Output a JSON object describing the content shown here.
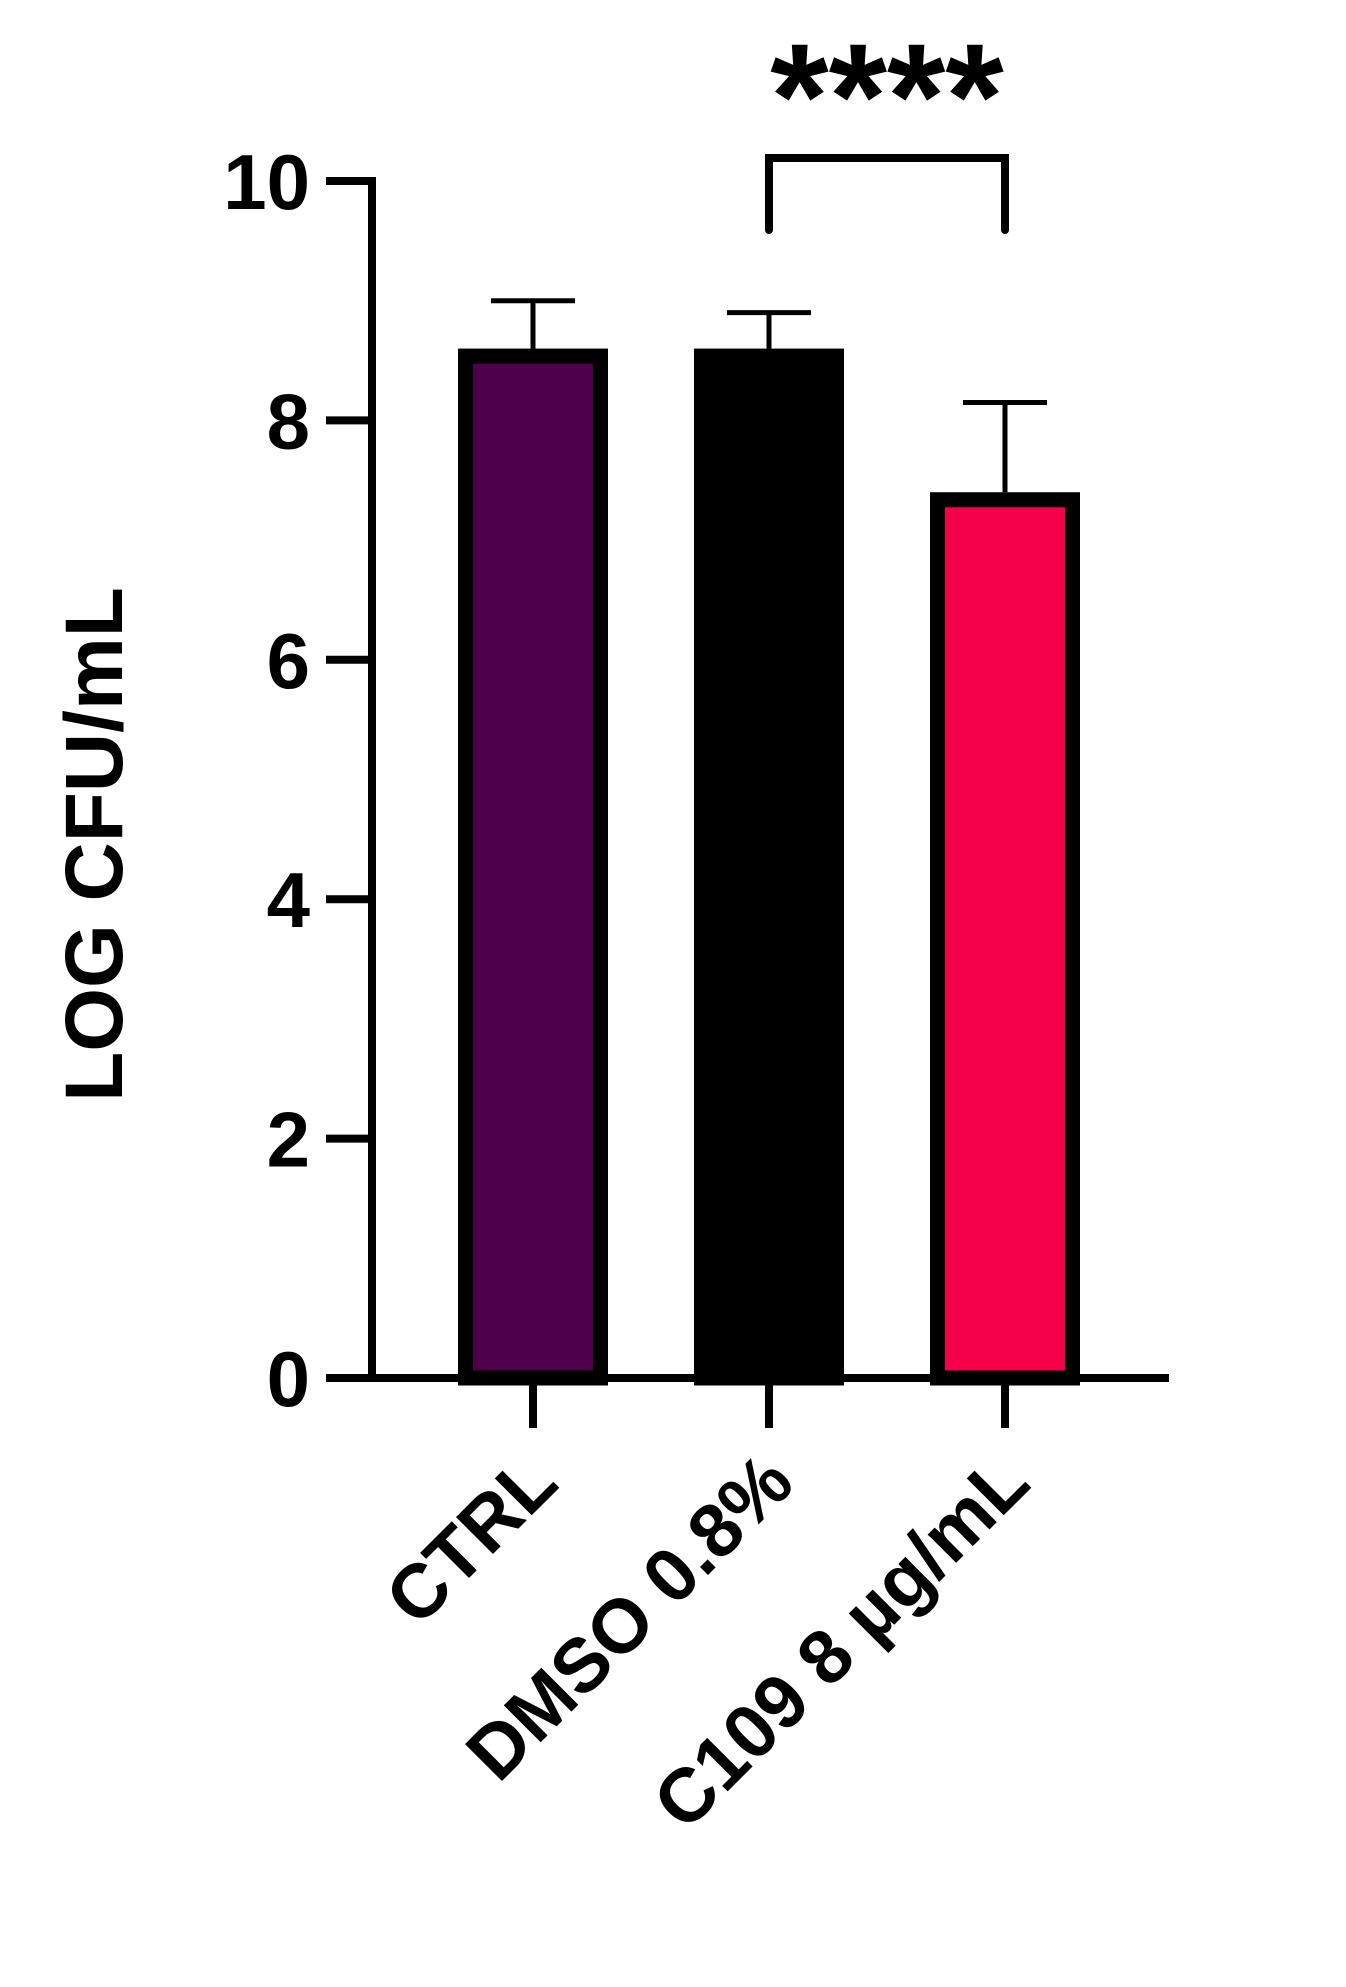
{
  "chart_data": {
    "type": "bar",
    "title": "",
    "xlabel": "",
    "ylabel": "LOG CFU/mL",
    "ylim": [
      0,
      10
    ],
    "yticks": [
      0,
      2,
      4,
      6,
      8,
      10
    ],
    "ytick_labels": [
      "0",
      "2",
      "4",
      "6",
      "8",
      "10"
    ],
    "categories": [
      "CTRL",
      "DMSO 0.8%",
      "C109 8 µg/mL"
    ],
    "values": [
      8.6,
      8.6,
      7.4
    ],
    "error_upper": [
      0.4,
      0.3,
      0.75
    ],
    "colors": [
      "#4f004d",
      "#000000",
      "#f5004a"
    ],
    "outline_color": "#000000",
    "grid": false,
    "significance": {
      "between": [
        1,
        2
      ],
      "label": "****"
    }
  }
}
